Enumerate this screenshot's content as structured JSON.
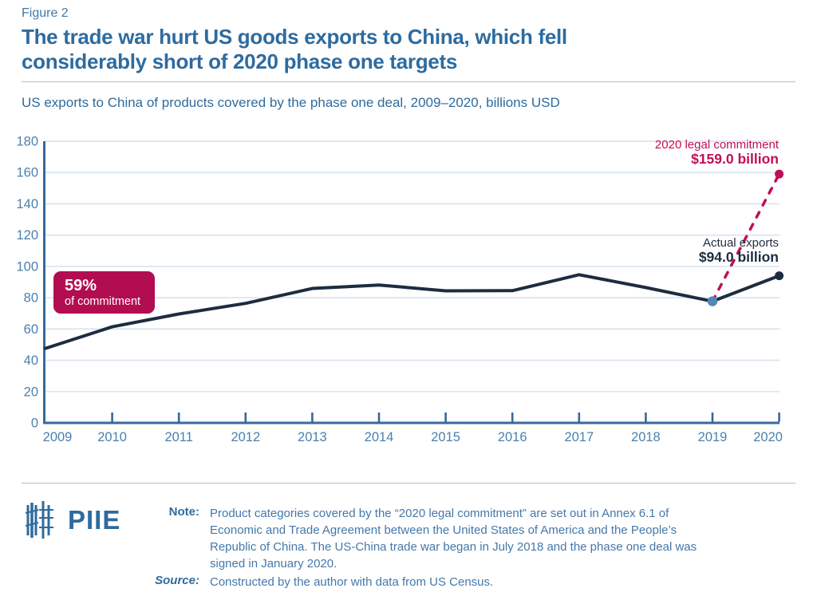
{
  "page": {
    "figure_label": "Figure 2",
    "title_line1": "The trade war hurt US goods exports to China, which fell",
    "title_line2": "considerably short of 2020 phase one targets",
    "subtitle": "US exports to China of products covered by the phase one deal, 2009–2020, billions USD"
  },
  "badge": {
    "percent": "59%",
    "caption": "of commitment"
  },
  "annotations": {
    "commitment_label": "2020 legal commitment",
    "commitment_value": "$159.0 billion",
    "actual_label": "Actual exports",
    "actual_value": "$94.0 billion"
  },
  "chart_data": {
    "type": "line",
    "title": "US exports to China of products covered by the phase one deal, 2009–2020, billions USD",
    "x": [
      2009,
      2010,
      2011,
      2012,
      2013,
      2014,
      2015,
      2016,
      2017,
      2018,
      2019,
      2020
    ],
    "series": [
      {
        "name": "Actual exports of covered products",
        "values": [
          47.6,
          61.4,
          69.6,
          76.4,
          85.9,
          88.1,
          84.4,
          84.5,
          94.7,
          86.5,
          77.7,
          94.0
        ]
      }
    ],
    "commitment_point": {
      "year": 2020,
      "value": 159.0,
      "dashed_from_year": 2019
    },
    "point_markers": [
      {
        "year": 2019,
        "color_key": "dot_blue"
      },
      {
        "year": 2020,
        "color_key": "navy"
      }
    ],
    "ylabel": "billions USD",
    "ylim": [
      0,
      180
    ],
    "ytick_step": 20,
    "grid": true,
    "legend": "none"
  },
  "footer": {
    "logo_text": "PIIE",
    "note_label": "Note:",
    "note_lines": [
      "Product categories covered by the “2020 legal commitment” are set out in Annex 6.1 of",
      "Economic and Trade Agreement between the United States of America and the People’s",
      "Republic of China. The US-China trade war began in July 2018 and the phase one deal was",
      "signed in January 2020."
    ],
    "source_label": "Source:",
    "source_text": "Constructed by the author with data from US Census."
  },
  "colors": {
    "brand_blue": "#2e6b9e",
    "axis_blue": "#4c80ad",
    "axis_line_blue": "#38699b",
    "gridline": "#dce6f0",
    "navy": "#1d2d40",
    "crimson": "#c10e56",
    "badge_bg": "#b30d52",
    "dot_blue": "#4f87b8"
  }
}
